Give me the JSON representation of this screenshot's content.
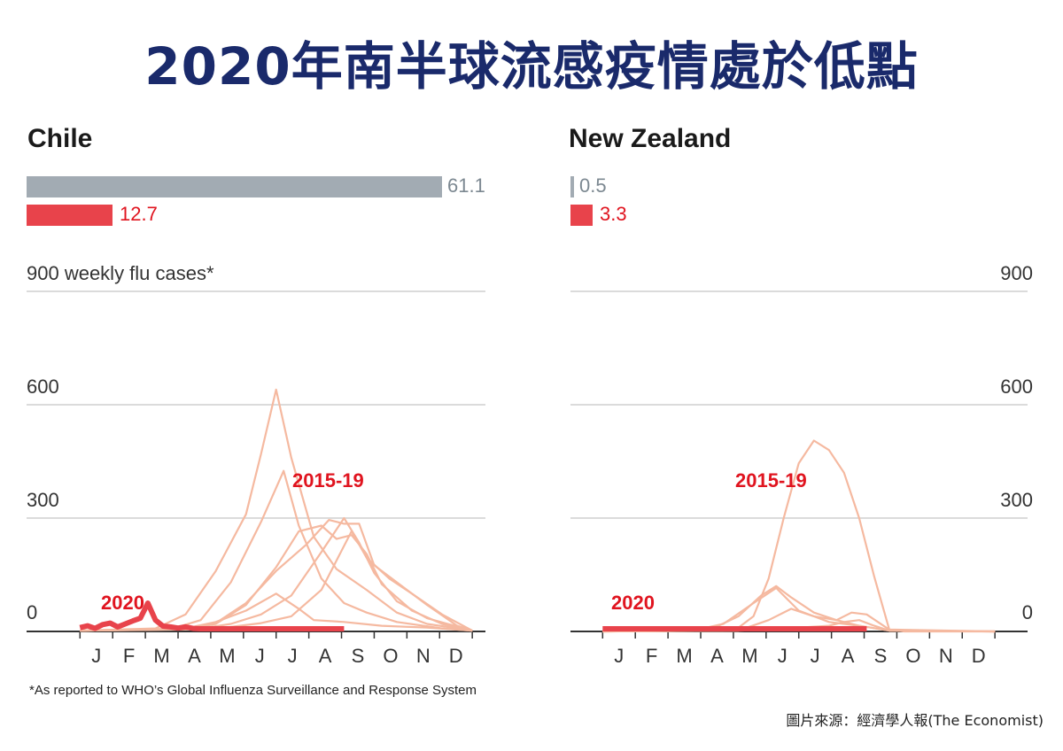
{
  "title": "2020年南半球流感疫情處於低點",
  "footnote": "*As reported to WHO’s Global Influenza Surveillance and Response System",
  "source": "圖片來源：經濟學人報(The Economist)",
  "colors": {
    "title": "#1a2a6b",
    "grey": "#a2abb3",
    "red": "#e8434b",
    "faint": "#f5b9a0",
    "label_red": "#e0141f",
    "label_grey": "#7c8891"
  },
  "chart_data": [
    {
      "type": "line",
      "panel": "Chile",
      "ylabel": "900 weekly flu cases*",
      "yticks": [
        "0",
        "300",
        "600"
      ],
      "ylim": [
        0,
        900
      ],
      "months": [
        "J",
        "F",
        "M",
        "A",
        "M",
        "J",
        "J",
        "A",
        "S",
        "O",
        "N",
        "D"
      ],
      "totals": {
        "grey": "61.1",
        "red": "12.7"
      },
      "labels": {
        "historical": "2015-19",
        "current": "2020"
      },
      "historical_series": [
        [
          [
            0,
            2
          ],
          [
            10,
            8
          ],
          [
            14,
            45
          ],
          [
            18,
            160
          ],
          [
            22,
            310
          ],
          [
            24,
            470
          ],
          [
            26,
            640
          ],
          [
            28,
            460
          ],
          [
            31,
            250
          ],
          [
            34,
            165
          ],
          [
            38,
            110
          ],
          [
            42,
            50
          ],
          [
            46,
            20
          ],
          [
            52,
            2
          ]
        ],
        [
          [
            0,
            2
          ],
          [
            12,
            6
          ],
          [
            16,
            30
          ],
          [
            20,
            130
          ],
          [
            24,
            290
          ],
          [
            27,
            425
          ],
          [
            29,
            280
          ],
          [
            32,
            140
          ],
          [
            35,
            75
          ],
          [
            38,
            50
          ],
          [
            42,
            25
          ],
          [
            48,
            8
          ],
          [
            52,
            2
          ]
        ],
        [
          [
            0,
            2
          ],
          [
            14,
            5
          ],
          [
            18,
            20
          ],
          [
            22,
            70
          ],
          [
            26,
            170
          ],
          [
            29,
            265
          ],
          [
            32,
            280
          ],
          [
            34,
            245
          ],
          [
            36,
            255
          ],
          [
            38,
            205
          ],
          [
            40,
            125
          ],
          [
            44,
            55
          ],
          [
            48,
            20
          ],
          [
            52,
            2
          ]
        ],
        [
          [
            0,
            2
          ],
          [
            14,
            6
          ],
          [
            18,
            22
          ],
          [
            22,
            75
          ],
          [
            26,
            160
          ],
          [
            30,
            230
          ],
          [
            33,
            295
          ],
          [
            35,
            285
          ],
          [
            37,
            285
          ],
          [
            39,
            175
          ],
          [
            42,
            130
          ],
          [
            46,
            70
          ],
          [
            50,
            15
          ],
          [
            52,
            2
          ]
        ],
        [
          [
            0,
            2
          ],
          [
            16,
            8
          ],
          [
            20,
            20
          ],
          [
            24,
            45
          ],
          [
            28,
            95
          ],
          [
            32,
            210
          ],
          [
            35,
            300
          ],
          [
            37,
            235
          ],
          [
            39,
            155
          ],
          [
            42,
            80
          ],
          [
            46,
            35
          ],
          [
            52,
            2
          ]
        ],
        [
          [
            0,
            2
          ],
          [
            16,
            6
          ],
          [
            20,
            12
          ],
          [
            24,
            22
          ],
          [
            28,
            40
          ],
          [
            32,
            110
          ],
          [
            36,
            265
          ],
          [
            38,
            195
          ],
          [
            41,
            140
          ],
          [
            44,
            100
          ],
          [
            48,
            45
          ],
          [
            52,
            2
          ]
        ],
        [
          [
            0,
            2
          ],
          [
            14,
            8
          ],
          [
            18,
            25
          ],
          [
            22,
            55
          ],
          [
            26,
            100
          ],
          [
            29,
            60
          ],
          [
            31,
            30
          ],
          [
            35,
            25
          ],
          [
            40,
            15
          ],
          [
            46,
            10
          ],
          [
            52,
            2
          ]
        ]
      ],
      "current_series": [
        [
          0,
          10
        ],
        [
          1,
          15
        ],
        [
          2,
          8
        ],
        [
          3,
          18
        ],
        [
          4,
          22
        ],
        [
          5,
          12
        ],
        [
          6,
          20
        ],
        [
          7,
          28
        ],
        [
          8,
          35
        ],
        [
          9,
          75
        ],
        [
          10,
          30
        ],
        [
          11,
          14
        ],
        [
          12,
          12
        ],
        [
          13,
          9
        ],
        [
          14,
          12
        ],
        [
          15,
          8
        ],
        [
          16,
          5
        ],
        [
          17,
          4
        ],
        [
          18,
          3
        ],
        [
          20,
          2
        ],
        [
          25,
          1
        ],
        [
          30,
          1
        ],
        [
          35,
          1
        ]
      ]
    },
    {
      "type": "line",
      "panel": "New Zealand",
      "ylabel": "900",
      "yticks": [
        "0",
        "300",
        "600"
      ],
      "ylim": [
        0,
        900
      ],
      "months": [
        "J",
        "F",
        "M",
        "A",
        "M",
        "J",
        "J",
        "A",
        "S",
        "O",
        "N",
        "D"
      ],
      "totals": {
        "grey": "0.5",
        "red": "3.3"
      },
      "labels": {
        "historical": "2015-19",
        "current": "2020"
      },
      "historical_series": [
        [
          [
            0,
            0
          ],
          [
            16,
            2
          ],
          [
            18,
            10
          ],
          [
            20,
            40
          ],
          [
            22,
            140
          ],
          [
            24,
            300
          ],
          [
            26,
            445
          ],
          [
            28,
            505
          ],
          [
            30,
            480
          ],
          [
            32,
            420
          ],
          [
            34,
            300
          ],
          [
            36,
            145
          ],
          [
            38,
            5
          ],
          [
            40,
            0
          ],
          [
            52,
            0
          ]
        ],
        [
          [
            0,
            0
          ],
          [
            12,
            2
          ],
          [
            16,
            20
          ],
          [
            20,
            75
          ],
          [
            23,
            115
          ],
          [
            26,
            55
          ],
          [
            30,
            25
          ],
          [
            34,
            15
          ],
          [
            38,
            2
          ],
          [
            52,
            0
          ]
        ],
        [
          [
            0,
            0
          ],
          [
            14,
            2
          ],
          [
            18,
            40
          ],
          [
            21,
            95
          ],
          [
            23,
            120
          ],
          [
            25,
            90
          ],
          [
            28,
            50
          ],
          [
            31,
            30
          ],
          [
            34,
            15
          ],
          [
            38,
            2
          ],
          [
            52,
            0
          ]
        ],
        [
          [
            0,
            0
          ],
          [
            18,
            2
          ],
          [
            22,
            30
          ],
          [
            25,
            60
          ],
          [
            28,
            40
          ],
          [
            31,
            30
          ],
          [
            33,
            50
          ],
          [
            35,
            45
          ],
          [
            38,
            5
          ],
          [
            52,
            0
          ]
        ],
        [
          [
            0,
            0
          ],
          [
            18,
            2
          ],
          [
            22,
            5
          ],
          [
            26,
            10
          ],
          [
            30,
            15
          ],
          [
            32,
            25
          ],
          [
            34,
            30
          ],
          [
            36,
            15
          ],
          [
            38,
            2
          ],
          [
            52,
            0
          ]
        ]
      ],
      "current_series": [
        [
          0,
          2
        ],
        [
          10,
          2
        ],
        [
          20,
          2
        ],
        [
          30,
          2
        ],
        [
          35,
          2
        ]
      ]
    }
  ]
}
